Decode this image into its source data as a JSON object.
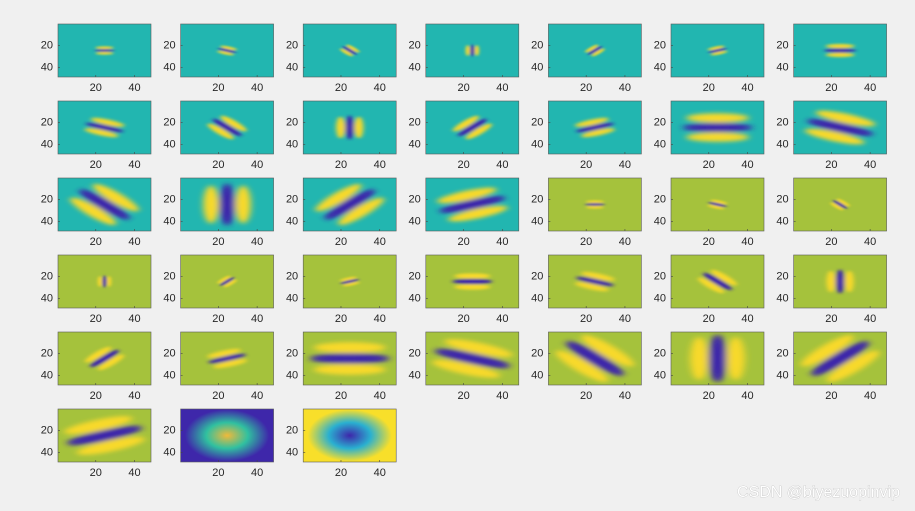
{
  "chart_data": [
    {
      "type": "image",
      "pattern": "gabor",
      "angle": 0,
      "scale": 1,
      "background": "#22b6b0",
      "center_color": "#3e27aa",
      "flank_color": "#f8d92b",
      "xlim": [
        0.5,
        48.5
      ],
      "ylim": [
        0.5,
        48.5
      ],
      "y_reversed": true,
      "xticks": [
        20,
        40
      ],
      "yticks": [
        20,
        40
      ]
    },
    {
      "type": "image",
      "pattern": "gabor",
      "angle": 20,
      "scale": 1,
      "background": "#22b6b0",
      "center_color": "#3e27aa",
      "flank_color": "#f8d92b",
      "xlim": [
        0.5,
        48.5
      ],
      "ylim": [
        0.5,
        48.5
      ],
      "y_reversed": true,
      "xticks": [
        20,
        40
      ],
      "yticks": [
        20,
        40
      ]
    },
    {
      "type": "image",
      "pattern": "gabor",
      "angle": 45,
      "scale": 1,
      "background": "#22b6b0",
      "center_color": "#3e27aa",
      "flank_color": "#f8d92b",
      "xlim": [
        0.5,
        48.5
      ],
      "ylim": [
        0.5,
        48.5
      ],
      "y_reversed": true,
      "xticks": [
        20,
        40
      ],
      "yticks": [
        20,
        40
      ]
    },
    {
      "type": "image",
      "pattern": "gabor",
      "angle": 90,
      "scale": 1,
      "background": "#22b6b0",
      "center_color": "#3e27aa",
      "flank_color": "#f8d92b",
      "xlim": [
        0.5,
        48.5
      ],
      "ylim": [
        0.5,
        48.5
      ],
      "y_reversed": true,
      "xticks": [
        20,
        40
      ],
      "yticks": [
        20,
        40
      ]
    },
    {
      "type": "image",
      "pattern": "gabor",
      "angle": -45,
      "scale": 1,
      "background": "#22b6b0",
      "center_color": "#3e27aa",
      "flank_color": "#f8d92b",
      "xlim": [
        0.5,
        48.5
      ],
      "ylim": [
        0.5,
        48.5
      ],
      "y_reversed": true,
      "xticks": [
        20,
        40
      ],
      "yticks": [
        20,
        40
      ]
    },
    {
      "type": "image",
      "pattern": "gabor",
      "angle": -20,
      "scale": 1,
      "background": "#22b6b0",
      "center_color": "#3e27aa",
      "flank_color": "#f8d92b",
      "xlim": [
        0.5,
        48.5
      ],
      "ylim": [
        0.5,
        48.5
      ],
      "y_reversed": true,
      "xticks": [
        20,
        40
      ],
      "yticks": [
        20,
        40
      ]
    },
    {
      "type": "image",
      "pattern": "gabor",
      "angle": 0,
      "scale": 1.6,
      "background": "#22b6b0",
      "center_color": "#3e27aa",
      "flank_color": "#f8d92b",
      "xlim": [
        0.5,
        48.5
      ],
      "ylim": [
        0.5,
        48.5
      ],
      "y_reversed": true,
      "xticks": [
        20,
        40
      ],
      "yticks": [
        20,
        40
      ]
    },
    {
      "type": "image",
      "pattern": "gabor",
      "angle": 20,
      "scale": 2,
      "background": "#22b6b0",
      "center_color": "#3e27aa",
      "flank_color": "#f8d92b",
      "xlim": [
        0.5,
        48.5
      ],
      "ylim": [
        0.5,
        48.5
      ],
      "y_reversed": true,
      "xticks": [
        20,
        40
      ],
      "yticks": [
        20,
        40
      ]
    },
    {
      "type": "image",
      "pattern": "gabor",
      "angle": 45,
      "scale": 2,
      "background": "#22b6b0",
      "center_color": "#3e27aa",
      "flank_color": "#f8d92b",
      "xlim": [
        0.5,
        48.5
      ],
      "ylim": [
        0.5,
        48.5
      ],
      "y_reversed": true,
      "xticks": [
        20,
        40
      ],
      "yticks": [
        20,
        40
      ]
    },
    {
      "type": "image",
      "pattern": "gabor",
      "angle": 90,
      "scale": 2,
      "background": "#22b6b0",
      "center_color": "#3e27aa",
      "flank_color": "#f8d92b",
      "xlim": [
        0.5,
        48.5
      ],
      "ylim": [
        0.5,
        48.5
      ],
      "y_reversed": true,
      "xticks": [
        20,
        40
      ],
      "yticks": [
        20,
        40
      ]
    },
    {
      "type": "image",
      "pattern": "gabor",
      "angle": -45,
      "scale": 2,
      "background": "#22b6b0",
      "center_color": "#3e27aa",
      "flank_color": "#f8d92b",
      "xlim": [
        0.5,
        48.5
      ],
      "ylim": [
        0.5,
        48.5
      ],
      "y_reversed": true,
      "xticks": [
        20,
        40
      ],
      "yticks": [
        20,
        40
      ]
    },
    {
      "type": "image",
      "pattern": "gabor",
      "angle": -20,
      "scale": 2,
      "background": "#22b6b0",
      "center_color": "#3e27aa",
      "flank_color": "#f8d92b",
      "xlim": [
        0.5,
        48.5
      ],
      "ylim": [
        0.5,
        48.5
      ],
      "y_reversed": true,
      "xticks": [
        20,
        40
      ],
      "yticks": [
        20,
        40
      ]
    },
    {
      "type": "image",
      "pattern": "gabor",
      "angle": 0,
      "scale": 3.5,
      "background": "#22b6b0",
      "center_color": "#3e27aa",
      "flank_color": "#f8d92b",
      "xlim": [
        0.5,
        48.5
      ],
      "ylim": [
        0.5,
        48.5
      ],
      "y_reversed": true,
      "xticks": [
        20,
        40
      ],
      "yticks": [
        20,
        40
      ]
    },
    {
      "type": "image",
      "pattern": "gabor",
      "angle": 20,
      "scale": 3.5,
      "background": "#22b6b0",
      "center_color": "#3e27aa",
      "flank_color": "#f8d92b",
      "xlim": [
        0.5,
        48.5
      ],
      "ylim": [
        0.5,
        48.5
      ],
      "y_reversed": true,
      "xticks": [
        20,
        40
      ],
      "yticks": [
        20,
        40
      ]
    },
    {
      "type": "image",
      "pattern": "gabor",
      "angle": 45,
      "scale": 3.5,
      "background": "#22b6b0",
      "center_color": "#3e27aa",
      "flank_color": "#f8d92b",
      "xlim": [
        0.5,
        48.5
      ],
      "ylim": [
        0.5,
        48.5
      ],
      "y_reversed": true,
      "xticks": [
        20,
        40
      ],
      "yticks": [
        20,
        40
      ]
    },
    {
      "type": "image",
      "pattern": "gabor",
      "angle": 90,
      "scale": 3.5,
      "background": "#22b6b0",
      "center_color": "#3e27aa",
      "flank_color": "#f8d92b",
      "xlim": [
        0.5,
        48.5
      ],
      "ylim": [
        0.5,
        48.5
      ],
      "y_reversed": true,
      "xticks": [
        20,
        40
      ],
      "yticks": [
        20,
        40
      ]
    },
    {
      "type": "image",
      "pattern": "gabor",
      "angle": -45,
      "scale": 3.5,
      "background": "#22b6b0",
      "center_color": "#3e27aa",
      "flank_color": "#f8d92b",
      "xlim": [
        0.5,
        48.5
      ],
      "ylim": [
        0.5,
        48.5
      ],
      "y_reversed": true,
      "xticks": [
        20,
        40
      ],
      "yticks": [
        20,
        40
      ]
    },
    {
      "type": "image",
      "pattern": "gabor",
      "angle": -20,
      "scale": 3.5,
      "background": "#22b6b0",
      "center_color": "#3e27aa",
      "flank_color": "#f8d92b",
      "xlim": [
        0.5,
        48.5
      ],
      "ylim": [
        0.5,
        48.5
      ],
      "y_reversed": true,
      "xticks": [
        20,
        40
      ],
      "yticks": [
        20,
        40
      ]
    },
    {
      "type": "image",
      "pattern": "gabor",
      "angle": 0,
      "scale": 1,
      "background": "#a5c23c",
      "center_color": "#3e27aa",
      "flank_color": "#f8d92b",
      "xlim": [
        0.5,
        48.5
      ],
      "ylim": [
        0.5,
        48.5
      ],
      "y_reversed": true,
      "xticks": [
        20,
        40
      ],
      "yticks": [
        20,
        40
      ]
    },
    {
      "type": "image",
      "pattern": "gabor",
      "angle": 20,
      "scale": 1,
      "background": "#a5c23c",
      "center_color": "#3e27aa",
      "flank_color": "#f8d92b",
      "xlim": [
        0.5,
        48.5
      ],
      "ylim": [
        0.5,
        48.5
      ],
      "y_reversed": true,
      "xticks": [
        20,
        40
      ],
      "yticks": [
        20,
        40
      ]
    },
    {
      "type": "image",
      "pattern": "gabor",
      "angle": 45,
      "scale": 1,
      "background": "#a5c23c",
      "center_color": "#3e27aa",
      "flank_color": "#f8d92b",
      "xlim": [
        0.5,
        48.5
      ],
      "ylim": [
        0.5,
        48.5
      ],
      "y_reversed": true,
      "xticks": [
        20,
        40
      ],
      "yticks": [
        20,
        40
      ]
    },
    {
      "type": "image",
      "pattern": "gabor",
      "angle": 90,
      "scale": 1,
      "background": "#a5c23c",
      "center_color": "#3e27aa",
      "flank_color": "#f8d92b",
      "xlim": [
        0.5,
        48.5
      ],
      "ylim": [
        0.5,
        48.5
      ],
      "y_reversed": true,
      "xticks": [
        20,
        40
      ],
      "yticks": [
        20,
        40
      ]
    },
    {
      "type": "image",
      "pattern": "gabor",
      "angle": -45,
      "scale": 1,
      "background": "#a5c23c",
      "center_color": "#3e27aa",
      "flank_color": "#f8d92b",
      "xlim": [
        0.5,
        48.5
      ],
      "ylim": [
        0.5,
        48.5
      ],
      "y_reversed": true,
      "xticks": [
        20,
        40
      ],
      "yticks": [
        20,
        40
      ]
    },
    {
      "type": "image",
      "pattern": "gabor",
      "angle": -20,
      "scale": 1,
      "background": "#a5c23c",
      "center_color": "#3e27aa",
      "flank_color": "#f8d92b",
      "xlim": [
        0.5,
        48.5
      ],
      "ylim": [
        0.5,
        48.5
      ],
      "y_reversed": true,
      "xticks": [
        20,
        40
      ],
      "yticks": [
        20,
        40
      ]
    },
    {
      "type": "image",
      "pattern": "gabor",
      "angle": 0,
      "scale": 2,
      "background": "#a5c23c",
      "center_color": "#3e27aa",
      "flank_color": "#f8d92b",
      "xlim": [
        0.5,
        48.5
      ],
      "ylim": [
        0.5,
        48.5
      ],
      "y_reversed": true,
      "xticks": [
        20,
        40
      ],
      "yticks": [
        20,
        40
      ]
    },
    {
      "type": "image",
      "pattern": "gabor",
      "angle": 20,
      "scale": 2,
      "background": "#a5c23c",
      "center_color": "#3e27aa",
      "flank_color": "#f8d92b",
      "xlim": [
        0.5,
        48.5
      ],
      "ylim": [
        0.5,
        48.5
      ],
      "y_reversed": true,
      "xticks": [
        20,
        40
      ],
      "yticks": [
        20,
        40
      ]
    },
    {
      "type": "image",
      "pattern": "gabor",
      "angle": 45,
      "scale": 2,
      "background": "#a5c23c",
      "center_color": "#3e27aa",
      "flank_color": "#f8d92b",
      "xlim": [
        0.5,
        48.5
      ],
      "ylim": [
        0.5,
        48.5
      ],
      "y_reversed": true,
      "xticks": [
        20,
        40
      ],
      "yticks": [
        20,
        40
      ]
    },
    {
      "type": "image",
      "pattern": "gabor",
      "angle": 90,
      "scale": 2,
      "background": "#a5c23c",
      "center_color": "#3e27aa",
      "flank_color": "#f8d92b",
      "xlim": [
        0.5,
        48.5
      ],
      "ylim": [
        0.5,
        48.5
      ],
      "y_reversed": true,
      "xticks": [
        20,
        40
      ],
      "yticks": [
        20,
        40
      ]
    },
    {
      "type": "image",
      "pattern": "gabor",
      "angle": -45,
      "scale": 2,
      "background": "#a5c23c",
      "center_color": "#3e27aa",
      "flank_color": "#f8d92b",
      "xlim": [
        0.5,
        48.5
      ],
      "ylim": [
        0.5,
        48.5
      ],
      "y_reversed": true,
      "xticks": [
        20,
        40
      ],
      "yticks": [
        20,
        40
      ]
    },
    {
      "type": "image",
      "pattern": "gabor",
      "angle": -20,
      "scale": 2,
      "background": "#a5c23c",
      "center_color": "#3e27aa",
      "flank_color": "#f8d92b",
      "xlim": [
        0.5,
        48.5
      ],
      "ylim": [
        0.5,
        48.5
      ],
      "y_reversed": true,
      "xticks": [
        20,
        40
      ],
      "yticks": [
        20,
        40
      ]
    },
    {
      "type": "image",
      "pattern": "gabor",
      "angle": 0,
      "scale": 4,
      "background": "#a5c23c",
      "center_color": "#3e27aa",
      "flank_color": "#f8d92b",
      "xlim": [
        0.5,
        48.5
      ],
      "ylim": [
        0.5,
        48.5
      ],
      "y_reversed": true,
      "xticks": [
        20,
        40
      ],
      "yticks": [
        20,
        40
      ]
    },
    {
      "type": "image",
      "pattern": "gabor",
      "angle": 20,
      "scale": 4,
      "background": "#a5c23c",
      "center_color": "#3e27aa",
      "flank_color": "#f8d92b",
      "xlim": [
        0.5,
        48.5
      ],
      "ylim": [
        0.5,
        48.5
      ],
      "y_reversed": true,
      "xticks": [
        20,
        40
      ],
      "yticks": [
        20,
        40
      ]
    },
    {
      "type": "image",
      "pattern": "gabor",
      "angle": 45,
      "scale": 4,
      "background": "#a5c23c",
      "center_color": "#3e27aa",
      "flank_color": "#f8d92b",
      "xlim": [
        0.5,
        48.5
      ],
      "ylim": [
        0.5,
        48.5
      ],
      "y_reversed": true,
      "xticks": [
        20,
        40
      ],
      "yticks": [
        20,
        40
      ]
    },
    {
      "type": "image",
      "pattern": "gabor",
      "angle": 90,
      "scale": 4,
      "background": "#a5c23c",
      "center_color": "#3e27aa",
      "flank_color": "#f8d92b",
      "xlim": [
        0.5,
        48.5
      ],
      "ylim": [
        0.5,
        48.5
      ],
      "y_reversed": true,
      "xticks": [
        20,
        40
      ],
      "yticks": [
        20,
        40
      ]
    },
    {
      "type": "image",
      "pattern": "gabor",
      "angle": -45,
      "scale": 4,
      "background": "#a5c23c",
      "center_color": "#3e27aa",
      "flank_color": "#f8d92b",
      "xlim": [
        0.5,
        48.5
      ],
      "ylim": [
        0.5,
        48.5
      ],
      "y_reversed": true,
      "xticks": [
        20,
        40
      ],
      "yticks": [
        20,
        40
      ]
    },
    {
      "type": "image",
      "pattern": "gabor",
      "angle": -20,
      "scale": 4,
      "background": "#a5c23c",
      "center_color": "#3e27aa",
      "flank_color": "#f8d92b",
      "xlim": [
        0.5,
        48.5
      ],
      "ylim": [
        0.5,
        48.5
      ],
      "y_reversed": true,
      "xticks": [
        20,
        40
      ],
      "yticks": [
        20,
        40
      ]
    },
    {
      "type": "image",
      "pattern": "blob",
      "colors": [
        "#f0b93a",
        "#30c0a0",
        "#3e27aa"
      ],
      "xlim": [
        0.5,
        48.5
      ],
      "ylim": [
        0.5,
        48.5
      ],
      "y_reversed": true,
      "xticks": [
        20,
        40
      ],
      "yticks": [
        20,
        40
      ]
    },
    {
      "type": "image",
      "pattern": "blob",
      "colors": [
        "#3e27aa",
        "#2ab0d0",
        "#f8df2a"
      ],
      "xlim": [
        0.5,
        48.5
      ],
      "ylim": [
        0.5,
        48.5
      ],
      "y_reversed": true,
      "xticks": [
        20,
        40
      ],
      "yticks": [
        20,
        40
      ]
    }
  ],
  "watermark": "CSDN @biyezuopinvip"
}
